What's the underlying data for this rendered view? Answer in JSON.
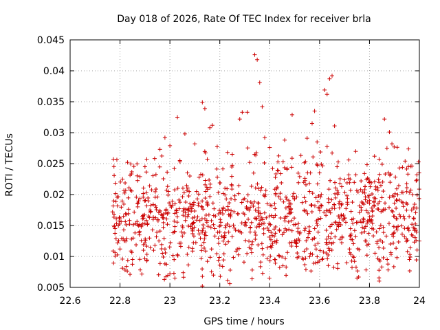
{
  "chart_data": {
    "type": "scatter",
    "title": "Day 018 of 2026, Rate Of TEC Index for receiver brla",
    "xlabel": "GPS time / hours",
    "ylabel": "ROTI / TECUs",
    "xlim": [
      22.6,
      24.0
    ],
    "ylim": [
      0.005,
      0.045
    ],
    "x_ticks": [
      "22.6",
      "22.8",
      "23",
      "23.2",
      "23.4",
      "23.6",
      "23.8",
      "24"
    ],
    "y_ticks": [
      "0.005",
      "0.01",
      "0.015",
      "0.02",
      "0.025",
      "0.03",
      "0.035",
      "0.04",
      "0.045"
    ],
    "grid": true,
    "marker": "+",
    "color": "#cc0000",
    "series": [
      {
        "x_range": [
          22.77,
          24.0
        ],
        "points": [
          [
            22.77,
            0.0172
          ],
          [
            22.78,
            0.0106
          ],
          [
            22.78,
            0.0145
          ],
          [
            22.79,
            0.0122
          ],
          [
            22.8,
            0.0112
          ],
          [
            22.8,
            0.0162
          ],
          [
            22.81,
            0.0081
          ],
          [
            22.81,
            0.0225
          ],
          [
            22.82,
            0.0078
          ],
          [
            22.83,
            0.0252
          ],
          [
            22.84,
            0.0071
          ],
          [
            22.85,
            0.0095
          ],
          [
            22.86,
            0.0138
          ],
          [
            22.87,
            0.0151
          ],
          [
            22.88,
            0.0229
          ],
          [
            22.89,
            0.0165
          ],
          [
            22.9,
            0.0122
          ],
          [
            22.9,
            0.0245
          ],
          [
            22.92,
            0.0175
          ],
          [
            22.93,
            0.0143
          ],
          [
            22.94,
            0.0118
          ],
          [
            22.95,
            0.0196
          ],
          [
            22.96,
            0.0273
          ],
          [
            22.97,
            0.0105
          ],
          [
            22.98,
            0.0292
          ],
          [
            22.98,
            0.0088
          ],
          [
            22.99,
            0.0152
          ],
          [
            23.0,
            0.0279
          ],
          [
            23.0,
            0.0072
          ],
          [
            23.01,
            0.0183
          ],
          [
            23.02,
            0.0065
          ],
          [
            23.03,
            0.0325
          ],
          [
            23.04,
            0.0255
          ],
          [
            23.05,
            0.0133
          ],
          [
            23.06,
            0.0298
          ],
          [
            23.07,
            0.0235
          ],
          [
            23.08,
            0.0185
          ],
          [
            23.09,
            0.0113
          ],
          [
            23.1,
            0.0282
          ],
          [
            23.11,
            0.0193
          ],
          [
            23.12,
            0.0158
          ],
          [
            23.13,
            0.0349
          ],
          [
            23.13,
            0.0052
          ],
          [
            23.14,
            0.0339
          ],
          [
            23.15,
            0.0257
          ],
          [
            23.16,
            0.0308
          ],
          [
            23.17,
            0.0312
          ],
          [
            23.18,
            0.0145
          ],
          [
            23.19,
            0.0228
          ],
          [
            23.2,
            0.0086
          ],
          [
            23.21,
            0.0175
          ],
          [
            23.22,
            0.0138
          ],
          [
            23.24,
            0.0056
          ],
          [
            23.25,
            0.0265
          ],
          [
            23.26,
            0.0198
          ],
          [
            23.27,
            0.0112
          ],
          [
            23.28,
            0.0322
          ],
          [
            23.29,
            0.0333
          ],
          [
            23.3,
            0.0151
          ],
          [
            23.31,
            0.0333
          ],
          [
            23.32,
            0.0252
          ],
          [
            23.33,
            0.0078
          ],
          [
            23.34,
            0.0426
          ],
          [
            23.35,
            0.0418
          ],
          [
            23.36,
            0.0381
          ],
          [
            23.37,
            0.0342
          ],
          [
            23.38,
            0.0292
          ],
          [
            23.39,
            0.0185
          ],
          [
            23.4,
            0.0276
          ],
          [
            23.41,
            0.0118
          ],
          [
            23.42,
            0.0095
          ],
          [
            23.43,
            0.0212
          ],
          [
            23.44,
            0.0082
          ],
          [
            23.45,
            0.0135
          ],
          [
            23.46,
            0.0288
          ],
          [
            23.47,
            0.0242
          ],
          [
            23.48,
            0.0175
          ],
          [
            23.49,
            0.0329
          ],
          [
            23.5,
            0.0125
          ],
          [
            23.51,
            0.0098
          ],
          [
            23.52,
            0.0229
          ],
          [
            23.53,
            0.0187
          ],
          [
            23.54,
            0.0142
          ],
          [
            23.55,
            0.0291
          ],
          [
            23.56,
            0.0205
          ],
          [
            23.57,
            0.0315
          ],
          [
            23.58,
            0.0335
          ],
          [
            23.59,
            0.0285
          ],
          [
            23.6,
            0.0178
          ],
          [
            23.61,
            0.0095
          ],
          [
            23.62,
            0.0369
          ],
          [
            23.63,
            0.0362
          ],
          [
            23.64,
            0.0387
          ],
          [
            23.65,
            0.0392
          ],
          [
            23.66,
            0.0311
          ],
          [
            23.67,
            0.0245
          ],
          [
            23.68,
            0.0162
          ],
          [
            23.69,
            0.0132
          ],
          [
            23.7,
            0.0224
          ],
          [
            23.71,
            0.0198
          ],
          [
            23.72,
            0.0112
          ],
          [
            23.73,
            0.0082
          ],
          [
            23.74,
            0.0092
          ],
          [
            23.75,
            0.0065
          ],
          [
            23.76,
            0.0171
          ],
          [
            23.77,
            0.0155
          ],
          [
            23.78,
            0.0234
          ],
          [
            23.79,
            0.0102
          ],
          [
            23.8,
            0.0186
          ],
          [
            23.81,
            0.0201
          ],
          [
            23.82,
            0.0262
          ],
          [
            23.83,
            0.0121
          ],
          [
            23.84,
            0.0145
          ],
          [
            23.85,
            0.0195
          ],
          [
            23.86,
            0.0322
          ],
          [
            23.87,
            0.0275
          ],
          [
            23.88,
            0.0301
          ],
          [
            23.89,
            0.0282
          ],
          [
            23.9,
            0.0165
          ],
          [
            23.91,
            0.0098
          ],
          [
            23.92,
            0.0243
          ],
          [
            23.93,
            0.0188
          ],
          [
            23.94,
            0.0132
          ],
          [
            23.95,
            0.0211
          ],
          [
            23.96,
            0.0095
          ],
          [
            23.97,
            0.0246
          ],
          [
            23.98,
            0.0142
          ],
          [
            23.99,
            0.0232
          ],
          [
            24.0,
            0.0125
          ]
        ]
      }
    ]
  }
}
